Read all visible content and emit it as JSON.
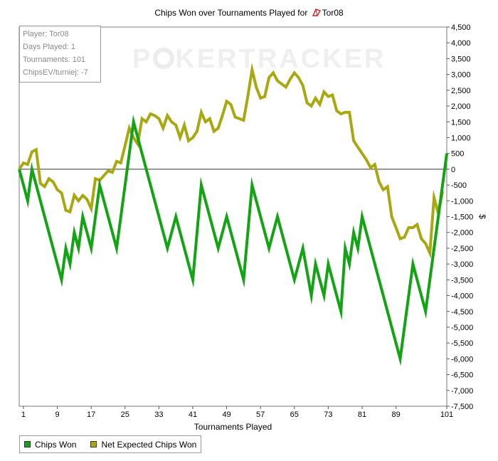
{
  "title": {
    "prefix": "Chips Won over Tournaments Played for",
    "player": "Tor08",
    "logo_icon": "pokertracker-logo-icon"
  },
  "info_box": {
    "player": "Player: Tor08",
    "days": "Days Played: 1",
    "tournaments": "Tournaments: 101",
    "chipsev": "ChipsEV/turniej: -7"
  },
  "watermark": {
    "left": "P",
    "mid": "KER",
    "right": "TRACKER"
  },
  "legend": {
    "items": [
      {
        "label": "Chips Won",
        "color": "#14a314"
      },
      {
        "label": "Net Expected Chips Won",
        "color": "#a8a812"
      }
    ]
  },
  "chart_data": {
    "type": "line",
    "title": "Chips Won over Tournaments Played for Tor08",
    "xlabel": "Tournaments Played",
    "ylabel": "$",
    "xlim": [
      0,
      101
    ],
    "ylim": [
      -7500,
      4500
    ],
    "x_ticks": [
      1,
      9,
      17,
      25,
      33,
      41,
      49,
      57,
      65,
      73,
      81,
      89,
      101
    ],
    "y_ticks": [
      4500,
      4000,
      3500,
      3000,
      2500,
      2000,
      1500,
      1000,
      500,
      0,
      -500,
      -1000,
      -1500,
      -2000,
      -2500,
      -3000,
      -3500,
      -4000,
      -4500,
      -5000,
      -5500,
      -6000,
      -6500,
      -7000,
      -7500
    ],
    "y_tick_labels": [
      "4,500",
      "4,000",
      "3,500",
      "3,000",
      "2,500",
      "2,000",
      "1,500",
      "1,000",
      "500",
      "0",
      "-500",
      "-1,000",
      "-1,500",
      "-2,000",
      "-2,500",
      "-3,000",
      "-3,500",
      "-4,000",
      "-4,500",
      "-5,000",
      "-5,500",
      "-6,000",
      "-6,500",
      "-7,000",
      "-7,500"
    ],
    "zero_line": true,
    "grid": false,
    "legend_position": "bottom-left",
    "series": [
      {
        "name": "Chips Won",
        "color": "#14a314",
        "points": [
          [
            0,
            0
          ],
          [
            2,
            -1000
          ],
          [
            3,
            0
          ],
          [
            10,
            -3500
          ],
          [
            11,
            -2500
          ],
          [
            12,
            -3000
          ],
          [
            13,
            -2000
          ],
          [
            14,
            -2500
          ],
          [
            15,
            -1500
          ],
          [
            17,
            -2500
          ],
          [
            19,
            -500
          ],
          [
            23,
            -2500
          ],
          [
            27,
            1500
          ],
          [
            35,
            -2500
          ],
          [
            37,
            -1500
          ],
          [
            41,
            -3500
          ],
          [
            43,
            -500
          ],
          [
            47,
            -2500
          ],
          [
            49,
            -1500
          ],
          [
            53,
            -3500
          ],
          [
            55,
            -500
          ],
          [
            59,
            -2500
          ],
          [
            61,
            -1500
          ],
          [
            65,
            -3500
          ],
          [
            67,
            -2500
          ],
          [
            69,
            -4000
          ],
          [
            70,
            -3000
          ],
          [
            72,
            -4000
          ],
          [
            73,
            -3000
          ],
          [
            76,
            -4500
          ],
          [
            77,
            -2500
          ],
          [
            78,
            -3000
          ],
          [
            79,
            -2000
          ],
          [
            80,
            -2500
          ],
          [
            81,
            -1500
          ],
          [
            90,
            -6000
          ],
          [
            93,
            -3000
          ],
          [
            96,
            -4500
          ],
          [
            101,
            500
          ]
        ]
      },
      {
        "name": "Net Expected Chips Won",
        "color": "#a8a812",
        "points": [
          [
            0,
            0
          ],
          [
            1,
            200
          ],
          [
            2,
            150
          ],
          [
            3,
            550
          ],
          [
            4,
            620
          ],
          [
            5,
            -450
          ],
          [
            6,
            -550
          ],
          [
            7,
            -300
          ],
          [
            8,
            -400
          ],
          [
            9,
            -650
          ],
          [
            10,
            -750
          ],
          [
            11,
            -1300
          ],
          [
            12,
            -1350
          ],
          [
            13,
            -820
          ],
          [
            14,
            -1000
          ],
          [
            15,
            -830
          ],
          [
            16,
            -950
          ],
          [
            17,
            -1250
          ],
          [
            18,
            -300
          ],
          [
            19,
            -350
          ],
          [
            20,
            -200
          ],
          [
            21,
            -50
          ],
          [
            22,
            -100
          ],
          [
            23,
            250
          ],
          [
            24,
            200
          ],
          [
            25,
            750
          ],
          [
            26,
            1300
          ],
          [
            27,
            1000
          ],
          [
            28,
            800
          ],
          [
            29,
            1600
          ],
          [
            30,
            1500
          ],
          [
            31,
            1750
          ],
          [
            32,
            1700
          ],
          [
            33,
            1600
          ],
          [
            34,
            1300
          ],
          [
            35,
            1700
          ],
          [
            36,
            1500
          ],
          [
            37,
            1400
          ],
          [
            38,
            1000
          ],
          [
            39,
            1400
          ],
          [
            40,
            900
          ],
          [
            41,
            1000
          ],
          [
            42,
            1200
          ],
          [
            43,
            1800
          ],
          [
            44,
            1500
          ],
          [
            45,
            1600
          ],
          [
            46,
            1200
          ],
          [
            47,
            1300
          ],
          [
            48,
            1700
          ],
          [
            49,
            2150
          ],
          [
            50,
            2050
          ],
          [
            51,
            1650
          ],
          [
            52,
            1600
          ],
          [
            53,
            1550
          ],
          [
            54,
            2300
          ],
          [
            55,
            3150
          ],
          [
            56,
            2600
          ],
          [
            57,
            2250
          ],
          [
            58,
            2300
          ],
          [
            59,
            2900
          ],
          [
            60,
            3050
          ],
          [
            61,
            2800
          ],
          [
            62,
            2700
          ],
          [
            63,
            2600
          ],
          [
            64,
            2850
          ],
          [
            65,
            3050
          ],
          [
            66,
            2900
          ],
          [
            67,
            2650
          ],
          [
            68,
            2100
          ],
          [
            69,
            2000
          ],
          [
            70,
            2250
          ],
          [
            71,
            2050
          ],
          [
            72,
            2450
          ],
          [
            73,
            2300
          ],
          [
            74,
            2350
          ],
          [
            75,
            1850
          ],
          [
            76,
            1750
          ],
          [
            77,
            1800
          ],
          [
            78,
            1800
          ],
          [
            79,
            900
          ],
          [
            80,
            700
          ],
          [
            81,
            500
          ],
          [
            82,
            300
          ],
          [
            83,
            50
          ],
          [
            84,
            150
          ],
          [
            85,
            -400
          ],
          [
            86,
            -650
          ],
          [
            87,
            -550
          ],
          [
            88,
            -1500
          ],
          [
            89,
            -1850
          ],
          [
            90,
            -2200
          ],
          [
            91,
            -2150
          ],
          [
            92,
            -1850
          ],
          [
            93,
            -1850
          ],
          [
            94,
            -1750
          ],
          [
            95,
            -2200
          ],
          [
            96,
            -2350
          ],
          [
            97,
            -2650
          ],
          [
            98,
            -900
          ],
          [
            99,
            -1400
          ],
          [
            100,
            -700
          ]
        ]
      }
    ]
  }
}
